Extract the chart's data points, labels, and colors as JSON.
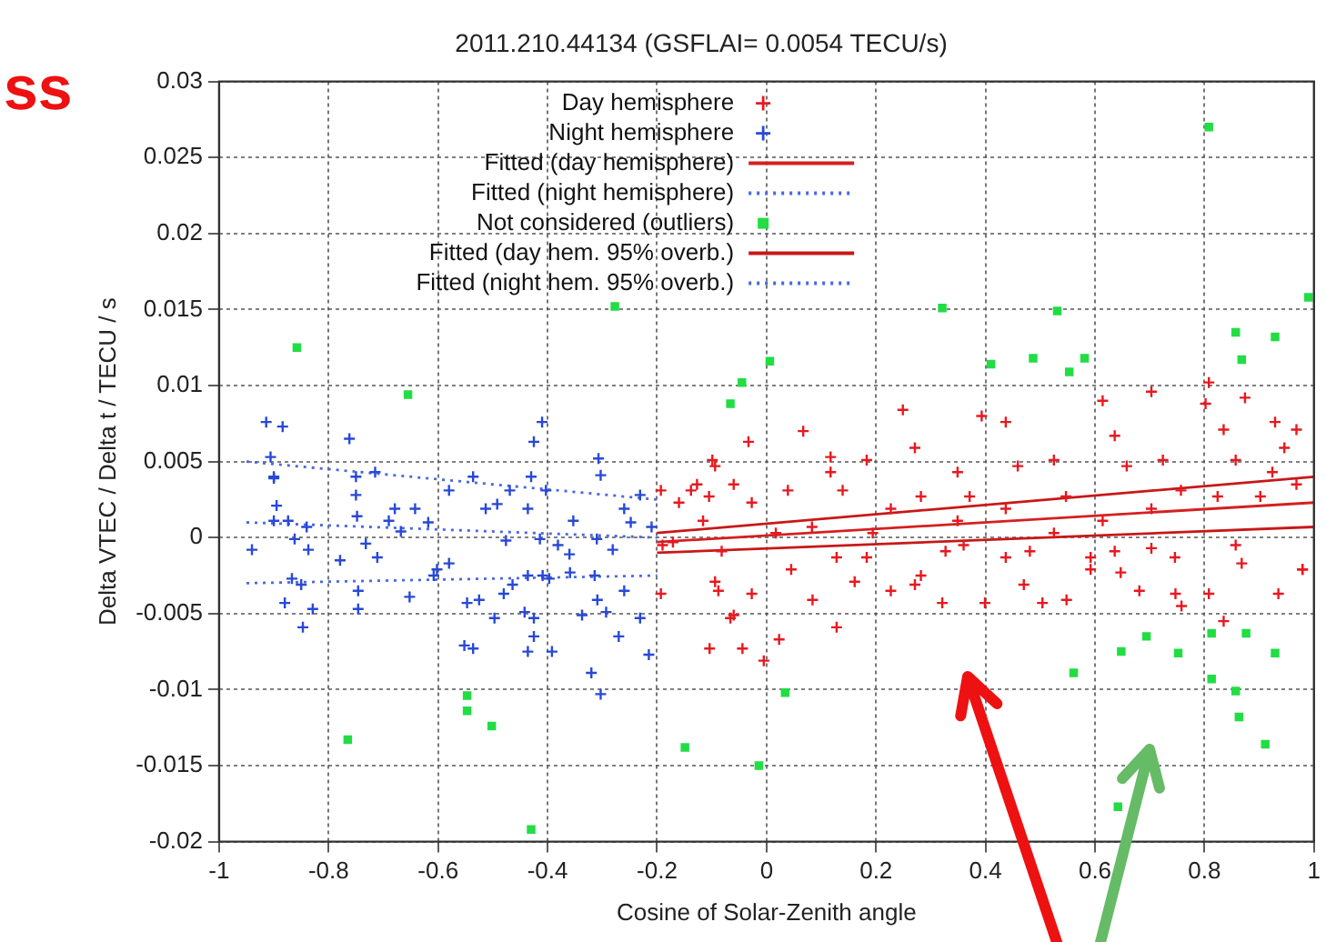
{
  "chart_data": {
    "type": "scatter",
    "title": "2011.210.44134 (GSFLAI= 0.0054 TECU/s)",
    "xlabel": "Cosine of Solar-Zenith angle",
    "ylabel": "Delta VTEC / Delta t / TECU / s",
    "annotations": [
      "ss"
    ],
    "xlim": [
      -1,
      1
    ],
    "xticks": [
      -1,
      -0.8,
      -0.6,
      -0.4,
      -0.2,
      0,
      0.2,
      0.4,
      0.6,
      0.8,
      1
    ],
    "ylim": [
      -0.02,
      0.03
    ],
    "yticks": [
      -0.02,
      -0.015,
      -0.01,
      -0.005,
      0,
      0.005,
      0.01,
      0.015,
      0.02,
      0.025,
      0.03
    ],
    "grid": true,
    "legend": "top",
    "series": [
      {
        "name": "Day hemisphere",
        "type": "scatter",
        "marker": "cross",
        "color": "#e8181f",
        "x": [
          0.249,
          0.393,
          0.067,
          -0.033,
          0.117,
          -0.094,
          -0.06,
          0.039,
          0.117,
          0.183,
          0.271,
          0.349,
          0.371,
          0.437,
          0.459,
          0.525,
          0.547,
          0.614,
          0.636,
          0.658,
          0.703,
          0.724,
          0.757,
          0.808,
          0.802,
          0.835,
          0.874,
          0.929,
          0.968,
          0.946,
          0.857,
          0.924,
          0.968,
          0.902,
          0.824,
          0.703,
          0.614,
          0.525,
          0.437,
          0.349,
          0.282,
          0.227,
          0.194,
          0.139,
          0.083,
          0.017,
          -0.027,
          -0.116,
          -0.105,
          0.128,
          0.327,
          0.437,
          0.636,
          0.746,
          0.857,
          0.979,
          0.592,
          0.282,
          -0.104,
          -0.044,
          -0.005,
          0.023,
          0.128,
          -0.06,
          -0.088,
          -0.027,
          0.045,
          0.084,
          0.161,
          0.227,
          0.271,
          0.321,
          0.399,
          0.47,
          0.504,
          0.548,
          0.592,
          0.647,
          0.681,
          0.747,
          0.758,
          0.808,
          0.835,
          0.868,
          0.935,
          0.979,
          0.703,
          0.481,
          0.36,
          0.183,
          -0.193,
          -0.066,
          -0.16,
          -0.127,
          -0.171,
          -0.094,
          -0.099,
          -0.193,
          -0.138,
          -0.19,
          -0.082
        ],
        "values": [
          0.0084,
          0.008,
          0.007,
          0.0063,
          0.0053,
          0.0047,
          0.0035,
          0.0031,
          0.0043,
          0.0051,
          0.0059,
          0.0043,
          0.0027,
          0.0076,
          0.0047,
          0.0051,
          0.0027,
          0.009,
          0.0067,
          0.0047,
          0.0096,
          0.0051,
          0.0031,
          0.0102,
          0.0088,
          0.0071,
          0.0092,
          0.0076,
          0.0071,
          0.0059,
          0.0051,
          0.0043,
          0.0035,
          0.0027,
          0.0027,
          0.0019,
          0.0011,
          0.0003,
          0.0019,
          0.0011,
          0.0027,
          0.0019,
          0.0003,
          0.0031,
          0.0007,
          0.0003,
          0.0023,
          0.0011,
          0.0027,
          -0.0013,
          -0.0009,
          -0.0013,
          -0.0009,
          -0.0013,
          -0.0005,
          -0.0021,
          -0.0021,
          -0.0025,
          -0.0073,
          -0.0073,
          -0.0081,
          -0.0067,
          -0.0059,
          -0.0051,
          -0.0035,
          -0.0037,
          -0.0021,
          -0.0041,
          -0.0029,
          -0.0035,
          -0.0031,
          -0.0043,
          -0.0043,
          -0.0031,
          -0.0043,
          -0.0041,
          -0.0013,
          -0.0023,
          -0.0035,
          -0.0037,
          -0.0045,
          -0.0037,
          -0.0055,
          -0.0017,
          -0.0037,
          -0.0021,
          -0.0007,
          -0.0009,
          -0.0005,
          -0.0013,
          -0.0037,
          -0.0053,
          0.0023,
          0.0035,
          -0.0003,
          -0.0029,
          0.0051,
          0.0031,
          0.0031,
          -0.0005,
          -0.0009
        ]
      },
      {
        "name": "Night hemisphere",
        "type": "scatter",
        "marker": "cross",
        "color": "#2848d8",
        "x": [
          -0.914,
          -0.884,
          -0.906,
          -0.9,
          -0.762,
          -0.425,
          -0.41,
          -0.307,
          -0.303,
          -0.75,
          -0.715,
          -0.536,
          -0.43,
          -0.75,
          -0.748,
          -0.895,
          -0.9,
          -0.874,
          -0.84,
          -0.862,
          -0.837,
          -0.94,
          -0.679,
          -0.69,
          -0.668,
          -0.642,
          -0.618,
          -0.711,
          -0.732,
          -0.58,
          -0.513,
          -0.492,
          -0.469,
          -0.436,
          -0.403,
          -0.414,
          -0.381,
          -0.353,
          -0.36,
          -0.31,
          -0.281,
          -0.26,
          -0.248,
          -0.231,
          -0.21,
          -0.476,
          -0.9,
          -0.58,
          -0.867,
          -0.85,
          -0.88,
          -0.829,
          -0.847,
          -0.779,
          -0.746,
          -0.746,
          -0.652,
          -0.547,
          -0.525,
          -0.497,
          -0.48,
          -0.464,
          -0.442,
          -0.425,
          -0.436,
          -0.409,
          -0.397,
          -0.359,
          -0.337,
          -0.314,
          -0.309,
          -0.293,
          -0.26,
          -0.231,
          -0.552,
          -0.536,
          -0.425,
          -0.436,
          -0.392,
          -0.27,
          -0.215,
          -0.32,
          -0.303,
          -0.608,
          -0.602
        ],
        "values": [
          0.0076,
          0.0073,
          0.0053,
          0.004,
          0.0065,
          0.0063,
          0.0076,
          0.0052,
          0.0041,
          0.004,
          0.0043,
          0.004,
          0.004,
          0.0028,
          0.0014,
          0.0021,
          0.0011,
          0.0011,
          0.0007,
          -0.0001,
          -0.0008,
          -0.0008,
          0.0019,
          0.0011,
          0.0004,
          0.0019,
          0.001,
          -0.0013,
          -0.0004,
          0.0031,
          0.0019,
          0.0022,
          0.0031,
          0.0019,
          0.0031,
          -0.0001,
          -0.0005,
          0.0011,
          -0.0011,
          -0.0001,
          -0.0008,
          0.0019,
          0.001,
          0.0028,
          0.0007,
          -0.0002,
          0.0039,
          -0.0017,
          -0.0027,
          -0.0031,
          -0.0043,
          -0.0047,
          -0.0059,
          -0.0015,
          -0.0035,
          -0.0047,
          -0.0039,
          -0.0043,
          -0.0041,
          -0.0053,
          -0.0037,
          -0.0031,
          -0.0049,
          -0.0053,
          -0.0025,
          -0.0025,
          -0.0027,
          -0.0023,
          -0.0051,
          -0.0025,
          -0.0041,
          -0.0049,
          -0.0035,
          -0.0053,
          -0.0071,
          -0.0073,
          -0.0065,
          -0.0075,
          -0.0075,
          -0.0065,
          -0.0077,
          -0.0089,
          -0.0103,
          -0.0025,
          -0.0021
        ]
      },
      {
        "name": "Fitted (day hemisphere)",
        "type": "line",
        "line_style": "solid",
        "color": "#d42020",
        "x": [
          -0.2,
          1
        ],
        "values": [
          -0.0003,
          0.0023
        ]
      },
      {
        "name": "Fitted (night hemisphere)",
        "type": "line",
        "line_style": "dotted",
        "color": "#4a68e0",
        "x": [
          -0.95,
          -0.2
        ],
        "values": [
          0.001,
          0
        ]
      },
      {
        "name": "Not considered (outliers)",
        "type": "scatter",
        "marker": "square",
        "color": "#22dd44",
        "x": [
          -0.858,
          -0.655,
          -0.277,
          -0.066,
          -0.045,
          0.808,
          0.321,
          0.006,
          0.41,
          0.487,
          0.531,
          0.553,
          0.581,
          0.99,
          0.857,
          0.929,
          0.868,
          -0.765,
          -0.547,
          -0.547,
          -0.502,
          -0.43,
          -0.149,
          0.034,
          -0.014,
          0.561,
          0.648,
          0.694,
          0.752,
          0.813,
          0.876,
          0.929,
          0.813,
          0.857,
          0.863,
          0.911,
          0.642
        ],
        "values": [
          0.0125,
          0.0094,
          0.0152,
          0.0088,
          0.0102,
          0.027,
          0.0151,
          0.0116,
          0.0114,
          0.0118,
          0.0149,
          0.0109,
          0.0118,
          0.0158,
          0.0135,
          0.0132,
          0.0117,
          -0.0133,
          -0.0104,
          -0.0114,
          -0.0124,
          -0.0192,
          -0.0138,
          -0.0102,
          -0.015,
          -0.0089,
          -0.0075,
          -0.0065,
          -0.0076,
          -0.0063,
          -0.0063,
          -0.0076,
          -0.0093,
          -0.0101,
          -0.0118,
          -0.0136,
          -0.0177
        ]
      },
      {
        "name": "Fitted (day hem. 95% overb.)",
        "type": "line",
        "line_style": "solid",
        "color": "#c81818",
        "x": [
          -0.2,
          1
        ],
        "values": [
          0.0003,
          0.004
        ]
      },
      {
        "type": "line",
        "line_style": "solid",
        "color": "#c81818",
        "x": [
          -0.2,
          1
        ],
        "values": [
          -0.001,
          0.0007
        ]
      },
      {
        "name": "Fitted (night hem. 95% overb.)",
        "type": "line",
        "line_style": "dotted",
        "color": "#4a68e0",
        "x": [
          -0.95,
          -0.2
        ],
        "values": [
          0.005,
          0.0025
        ]
      },
      {
        "type": "line",
        "line_style": "dotted",
        "color": "#4a68e0",
        "x": [
          -0.95,
          -0.2
        ],
        "values": [
          -0.003,
          -0.0025
        ]
      }
    ]
  }
}
